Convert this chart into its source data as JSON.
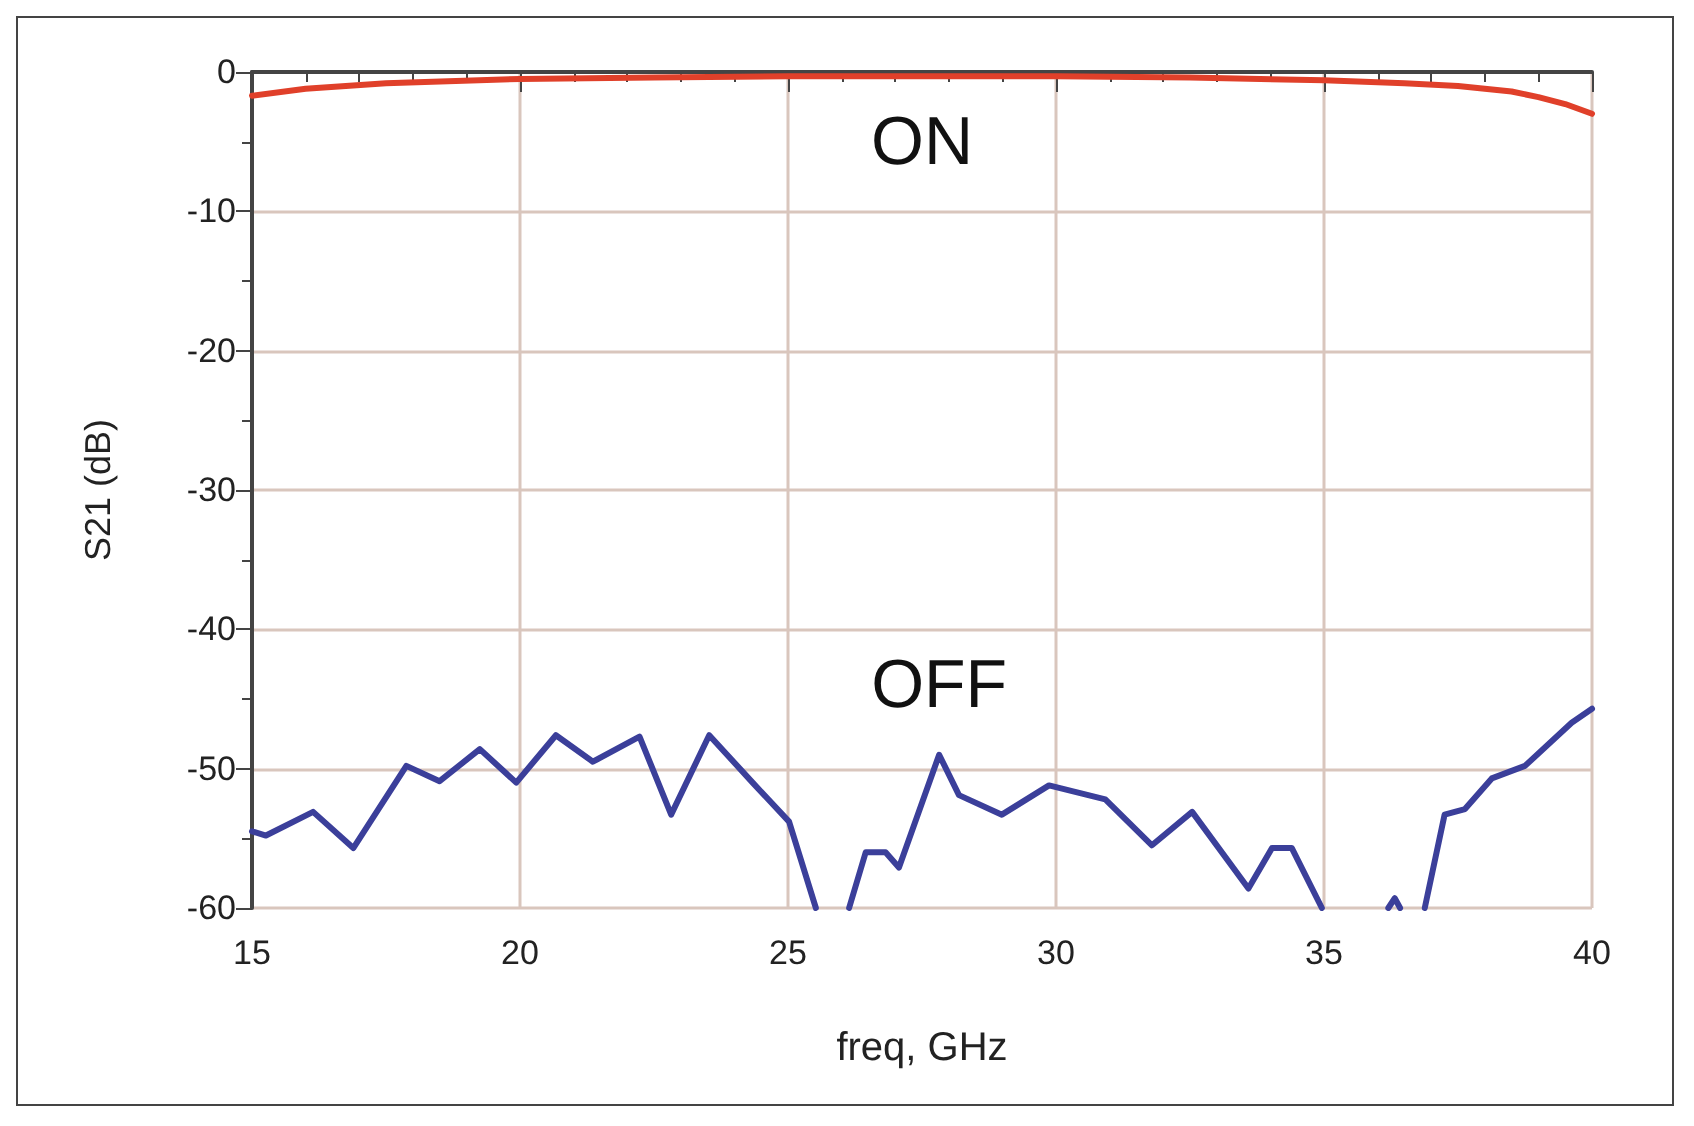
{
  "chart_data": {
    "type": "line",
    "xlabel": "freq, GHz",
    "ylabel": "S21 (dB)",
    "xlim": [
      15,
      40
    ],
    "xticks": [
      15,
      20,
      25,
      30,
      35,
      40
    ],
    "ylim": [
      -60,
      0
    ],
    "yticks": [
      0,
      -10,
      -20,
      -30,
      -40,
      -50,
      -60
    ],
    "grid": true,
    "legend": false,
    "marker": "none",
    "line_style": "solid",
    "series": [
      {
        "name": "ON",
        "color": "#e0402a",
        "x": [
          15,
          16,
          17.5,
          20,
          22.5,
          25,
          27.5,
          30,
          32.5,
          35,
          36.5,
          37.5,
          38.5,
          39,
          39.5,
          40
        ],
        "values": [
          -1.7,
          -1.2,
          -0.8,
          -0.5,
          -0.4,
          -0.3,
          -0.3,
          -0.3,
          -0.4,
          -0.6,
          -0.8,
          -1.0,
          -1.4,
          -1.8,
          -2.3,
          -3.0
        ]
      },
      {
        "name": "OFF",
        "color": "#3b3f9a",
        "x": [
          15,
          15.26,
          16.14,
          16.89,
          17.88,
          18.5,
          19.25,
          19.93,
          20.67,
          21.36,
          22.23,
          22.82,
          23.53,
          24.34,
          25.02,
          25.52,
          25.8,
          26.14,
          26.45,
          26.82,
          27.07,
          27.82,
          28.19,
          28.99,
          29.87,
          30.92,
          31.79,
          32.54,
          33.59,
          34.03,
          34.4,
          34.96,
          35.5,
          36.2,
          36.32,
          36.42,
          36.6,
          36.88,
          37.25,
          37.63,
          38.13,
          38.75,
          39.62,
          40
        ],
        "values": [
          -54.5,
          -54.8,
          -53.1,
          -55.7,
          -49.8,
          -50.9,
          -48.6,
          -51.0,
          -47.6,
          -49.5,
          -47.7,
          -53.3,
          -47.6,
          -51.0,
          -53.8,
          -60,
          null,
          -60,
          -56.0,
          -56.0,
          -57.1,
          -49.0,
          -51.9,
          -53.3,
          -51.2,
          -52.2,
          -55.5,
          -53.1,
          -58.6,
          -55.7,
          -55.7,
          -60,
          null,
          -60,
          -59.3,
          -60,
          null,
          -60,
          -53.3,
          -52.9,
          -50.7,
          -49.8,
          -46.7,
          -45.7
        ]
      }
    ]
  }
}
